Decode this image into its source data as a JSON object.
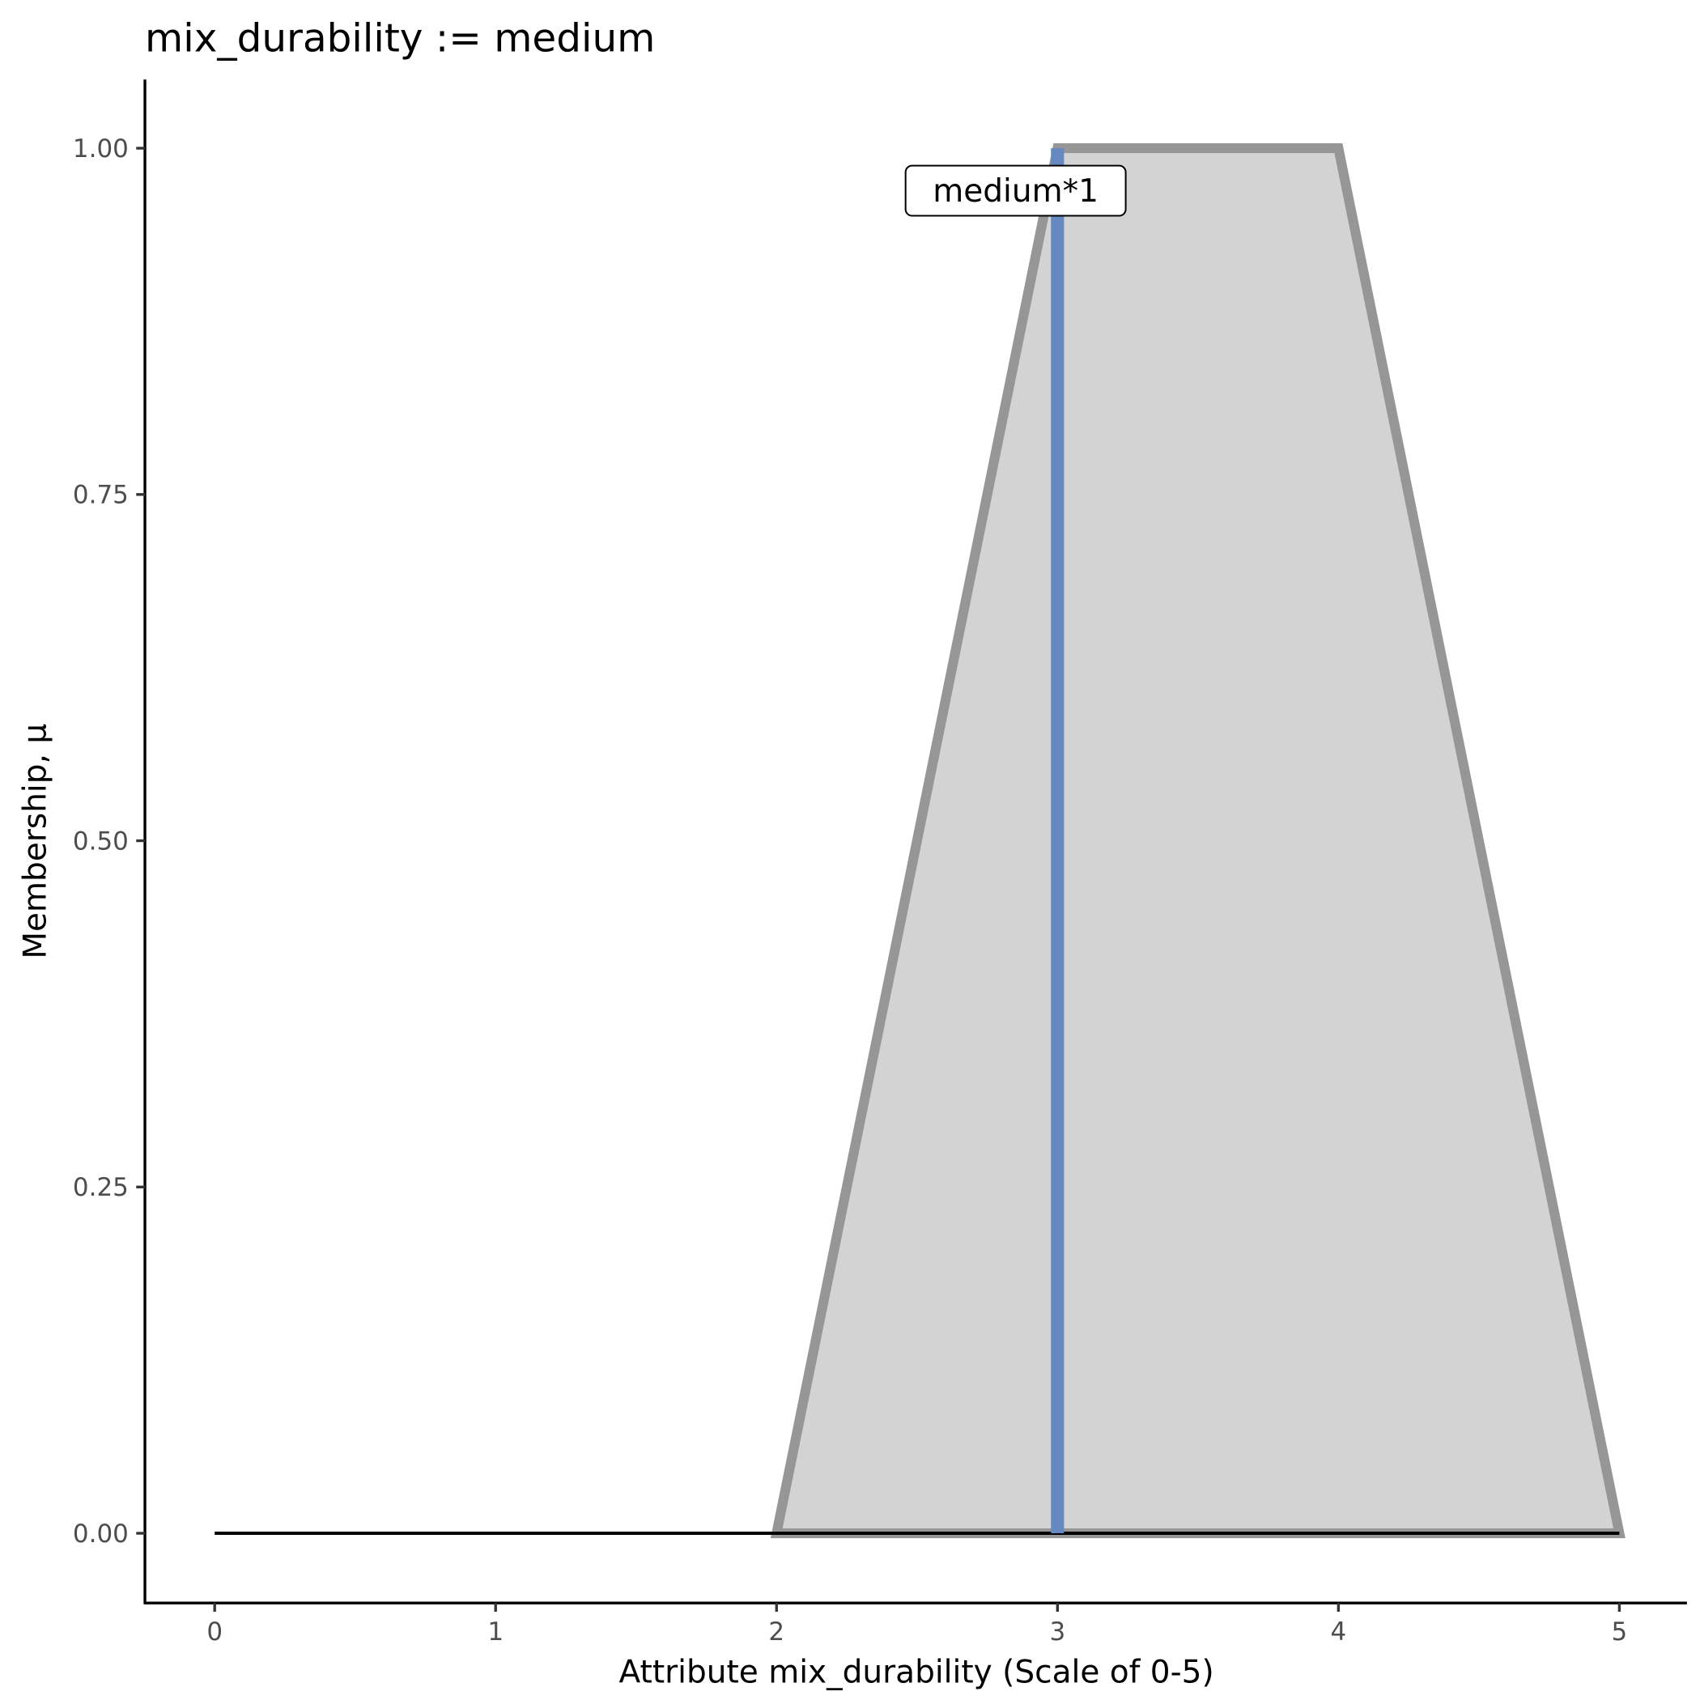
{
  "chart_data": {
    "type": "area",
    "title": "mix_durability := medium",
    "xlabel": "Attribute mix_durability (Scale of 0-5)",
    "ylabel": "Membership, μ",
    "xlim": [
      -0.25,
      5.25
    ],
    "ylim": [
      -0.05,
      1.05
    ],
    "x_ticks": [
      "0",
      "1",
      "2",
      "3",
      "4",
      "5"
    ],
    "y_ticks": [
      "0.00",
      "0.25",
      "0.50",
      "0.75",
      "1.00"
    ],
    "grid": false,
    "series": [
      {
        "x": [
          2,
          3,
          4,
          5
        ],
        "y": [
          0,
          1,
          1,
          0
        ],
        "fill": "#d3d3d3",
        "stroke": "#969696"
      }
    ],
    "baseline": {
      "x": [
        0,
        5
      ],
      "y": [
        0,
        0
      ],
      "color": "#000000"
    },
    "vline": {
      "x": 3,
      "y": [
        0,
        1
      ],
      "color": "#6689c1"
    },
    "annotation": {
      "text": "medium*1",
      "x": 2.5,
      "y": 0.97
    }
  }
}
